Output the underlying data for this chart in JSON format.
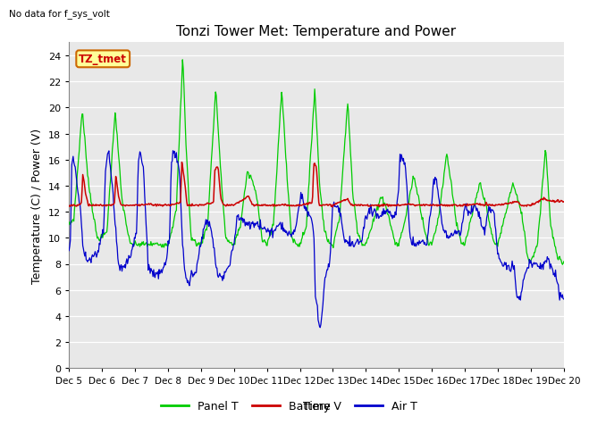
{
  "title": "Tonzi Tower Met: Temperature and Power",
  "top_left_note": "No data for f_sys_volt",
  "ylabel": "Temperature (C) / Power (V)",
  "xlabel": "Time",
  "ylim": [
    0,
    25
  ],
  "yticks": [
    0,
    2,
    4,
    6,
    8,
    10,
    12,
    14,
    16,
    18,
    20,
    22,
    24
  ],
  "xtick_labels": [
    "Dec 5",
    "Dec 6",
    "Dec 7",
    "Dec 8",
    "Dec 9",
    "Dec 10",
    "Dec 11",
    "Dec 12",
    "Dec 13",
    "Dec 14",
    "Dec 15",
    "Dec 16",
    "Dec 17",
    "Dec 18",
    "Dec 19",
    "Dec 20"
  ],
  "bg_color": "#e8e8e8",
  "fig_color": "#ffffff",
  "legend_entries": [
    "Panel T",
    "Battery V",
    "Air T"
  ],
  "legend_colors": [
    "#00cc00",
    "#cc0000",
    "#0000cc"
  ],
  "annotation_label": "TZ_tmet",
  "annotation_color": "#cc0000",
  "annotation_bg": "#ffff99",
  "annotation_border": "#cc6600",
  "panel_t_color": "#00cc00",
  "battery_v_color": "#cc0000",
  "air_t_color": "#0000cc",
  "title_fontsize": 11,
  "axis_fontsize": 9,
  "tick_fontsize": 8
}
